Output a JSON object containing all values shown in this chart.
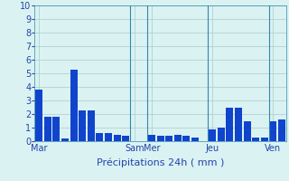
{
  "values": [
    3.8,
    1.8,
    1.8,
    0.2,
    5.3,
    2.3,
    2.3,
    0.6,
    0.6,
    0.45,
    0.4,
    0.0,
    0.0,
    0.5,
    0.4,
    0.4,
    0.5,
    0.4,
    0.3,
    0.0,
    0.9,
    1.0,
    2.5,
    2.5,
    1.5,
    0.3,
    0.3,
    1.5,
    1.6
  ],
  "day_labels": [
    "Mar",
    "Sam",
    "Mer",
    "Jeu",
    "Ven"
  ],
  "day_tick_positions": [
    1,
    12,
    14,
    21,
    28
  ],
  "vline_x": [
    11.5,
    13.5,
    20.5,
    27.5
  ],
  "bar_color": "#1144cc",
  "bg_color": "#daf2f2",
  "grid_color": "#aacccc",
  "tick_label_color": "#2244aa",
  "xlabel": "Précipitations 24h ( mm )",
  "ylim": [
    0,
    10
  ],
  "yticks": [
    0,
    1,
    2,
    3,
    4,
    5,
    6,
    7,
    8,
    9,
    10
  ],
  "vline_color": "#3388aa",
  "xlabel_fontsize": 8,
  "ytick_fontsize": 7,
  "xtick_fontsize": 7
}
